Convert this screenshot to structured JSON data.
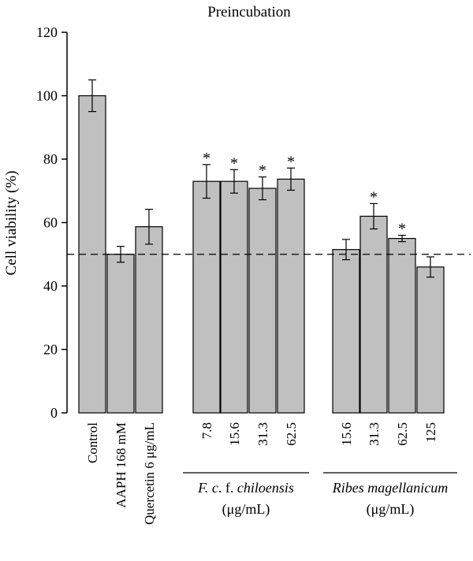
{
  "chart_data": {
    "type": "bar",
    "title": "Preincubation",
    "ylabel": "Cell viability (%)",
    "xlabel": "",
    "ylim": [
      0,
      120
    ],
    "yticks": [
      0,
      20,
      40,
      60,
      80,
      100,
      120
    ],
    "reference_line": 50,
    "grid": false,
    "bar_color": "#c0c0c0",
    "bars": [
      {
        "category": "Control",
        "value": 100,
        "error": 5,
        "significant": false
      },
      {
        "category": "AAPH 168 mM",
        "value": 50,
        "error": 2.5,
        "significant": false
      },
      {
        "category": "Quercetin 6 μg/mL",
        "value": 58.7,
        "error": 5.5,
        "significant": false
      },
      {
        "category": "7.8",
        "value": 73,
        "error": 5.3,
        "significant": true
      },
      {
        "category": "15.6",
        "value": 73,
        "error": 3.7,
        "significant": true
      },
      {
        "category": "31.3",
        "value": 70.8,
        "error": 3.6,
        "significant": true
      },
      {
        "category": "62.5",
        "value": 73.7,
        "error": 3.5,
        "significant": true
      },
      {
        "category": "15.6",
        "value": 51.5,
        "error": 3.2,
        "significant": false
      },
      {
        "category": "31.3",
        "value": 62,
        "error": 4,
        "significant": true
      },
      {
        "category": "62.5",
        "value": 55,
        "error": 1,
        "significant": true
      },
      {
        "category": "125",
        "value": 46,
        "error": 3.2,
        "significant": false
      }
    ],
    "significance_marker": "*",
    "groups": [
      {
        "label_parts": [
          "F",
          ". ",
          "c",
          ". f. ",
          "chiloensis"
        ],
        "unit": "(μg/mL)"
      },
      {
        "label_parts": [
          "Ribes magellanicum"
        ],
        "unit": "(μg/mL)"
      }
    ]
  }
}
